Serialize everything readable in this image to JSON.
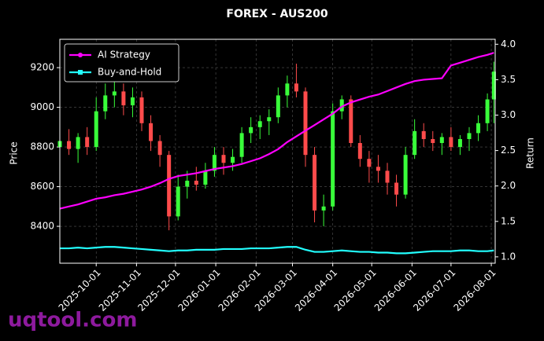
{
  "chart_data": {
    "type": "candlestick",
    "title": "FOREX - AUS200",
    "ylabel": "Price",
    "y2label": "Return",
    "watermark": "uqtool.com",
    "x": [
      "2025-09-03",
      "2025-09-10",
      "2025-09-17",
      "2025-09-24",
      "2025-10-01",
      "2025-10-08",
      "2025-10-15",
      "2025-10-22",
      "2025-10-29",
      "2025-11-05",
      "2025-11-12",
      "2025-11-19",
      "2025-11-26",
      "2025-12-03",
      "2025-12-10",
      "2025-12-17",
      "2025-12-24",
      "2025-12-31",
      "2026-01-07",
      "2026-01-14",
      "2026-01-21",
      "2026-01-28",
      "2026-02-04",
      "2026-02-11",
      "2026-02-18",
      "2026-02-25",
      "2026-03-04",
      "2026-03-11",
      "2026-03-18",
      "2026-03-25",
      "2026-04-01",
      "2026-04-08",
      "2026-04-15",
      "2026-04-22",
      "2026-04-29",
      "2026-05-06",
      "2026-05-13",
      "2026-05-20",
      "2026-05-27",
      "2026-06-03",
      "2026-06-10",
      "2026-06-17",
      "2026-06-24",
      "2026-07-01",
      "2026-07-08",
      "2026-07-15",
      "2026-07-22",
      "2026-07-29",
      "2026-08-03"
    ],
    "open": [
      8800,
      8830,
      8790,
      8850,
      8800,
      8980,
      9060,
      9080,
      9010,
      9050,
      8920,
      8830,
      8760,
      8450,
      8600,
      8630,
      8610,
      8680,
      8760,
      8720,
      8750,
      8870,
      8900,
      8930,
      8950,
      9060,
      9120,
      9080,
      8760,
      8480,
      8500,
      8980,
      9040,
      8820,
      8740,
      8700,
      8680,
      8620,
      8560,
      8760,
      8880,
      8840,
      8820,
      8850,
      8800,
      8840,
      8870,
      8920,
      9040
    ],
    "high": [
      8880,
      8890,
      8870,
      8900,
      9050,
      9120,
      9160,
      9120,
      9100,
      9080,
      8960,
      8860,
      8780,
      8660,
      8680,
      8700,
      8720,
      8800,
      8800,
      8790,
      8900,
      8950,
      8960,
      8990,
      9100,
      9160,
      9220,
      9100,
      8800,
      8560,
      9020,
      9060,
      9060,
      8860,
      8780,
      8760,
      8720,
      8660,
      8800,
      8940,
      8920,
      8880,
      8870,
      8900,
      8860,
      8900,
      8960,
      9070,
      9230
    ],
    "low": [
      8740,
      8760,
      8720,
      8760,
      8780,
      8940,
      9000,
      8960,
      8950,
      8880,
      8780,
      8700,
      8380,
      8430,
      8540,
      8580,
      8590,
      8650,
      8660,
      8680,
      8720,
      8820,
      8840,
      8860,
      8920,
      9000,
      9050,
      8700,
      8420,
      8400,
      8480,
      8940,
      8800,
      8700,
      8620,
      8620,
      8560,
      8500,
      8540,
      8740,
      8800,
      8780,
      8760,
      8780,
      8760,
      8780,
      8830,
      8880,
      8920
    ],
    "close": [
      8830,
      8790,
      8850,
      8800,
      8980,
      9060,
      9080,
      9010,
      9050,
      8920,
      8830,
      8760,
      8450,
      8600,
      8630,
      8610,
      8680,
      8760,
      8720,
      8750,
      8870,
      8900,
      8930,
      8950,
      9060,
      9120,
      9080,
      8760,
      8480,
      8500,
      8980,
      9040,
      8820,
      8740,
      8700,
      8680,
      8620,
      8560,
      8760,
      8880,
      8840,
      8820,
      8850,
      8800,
      8840,
      8870,
      8920,
      9040,
      9180
    ],
    "up_color": "#39ff3a",
    "down_color": "#ff4b4b",
    "series": [
      {
        "name": "AI Strategy",
        "color": "#ff00ff",
        "axis": "y2",
        "values": [
          1.68,
          1.71,
          1.74,
          1.78,
          1.82,
          1.84,
          1.87,
          1.89,
          1.92,
          1.95,
          1.99,
          2.04,
          2.1,
          2.14,
          2.16,
          2.18,
          2.21,
          2.24,
          2.26,
          2.28,
          2.31,
          2.35,
          2.39,
          2.45,
          2.52,
          2.62,
          2.7,
          2.78,
          2.86,
          2.94,
          3.02,
          3.12,
          3.18,
          3.22,
          3.26,
          3.29,
          3.34,
          3.39,
          3.44,
          3.48,
          3.5,
          3.51,
          3.52,
          3.7,
          3.74,
          3.78,
          3.82,
          3.85,
          3.88
        ]
      },
      {
        "name": "Buy-and-Hold",
        "color": "#22ffff",
        "axis": "y2",
        "values": [
          1.12,
          1.12,
          1.13,
          1.12,
          1.13,
          1.14,
          1.14,
          1.13,
          1.12,
          1.11,
          1.1,
          1.09,
          1.08,
          1.09,
          1.09,
          1.1,
          1.1,
          1.1,
          1.11,
          1.11,
          1.11,
          1.12,
          1.12,
          1.12,
          1.13,
          1.14,
          1.14,
          1.1,
          1.07,
          1.07,
          1.08,
          1.09,
          1.08,
          1.07,
          1.07,
          1.06,
          1.06,
          1.05,
          1.05,
          1.06,
          1.07,
          1.08,
          1.08,
          1.08,
          1.09,
          1.09,
          1.08,
          1.08,
          1.09
        ]
      }
    ],
    "xlim": [
      "2025-09-03",
      "2026-08-04"
    ],
    "xticks": [
      "2025-10-01",
      "2025-11-01",
      "2025-12-01",
      "2026-01-01",
      "2026-02-01",
      "2026-03-01",
      "2026-04-01",
      "2026-05-01",
      "2026-06-01",
      "2026-07-01",
      "2026-08-01"
    ],
    "ylim": [
      8214,
      9343
    ],
    "yticks": [
      8400,
      8600,
      8800,
      9000,
      9200
    ],
    "y2lim": [
      0.91,
      4.07
    ],
    "y2ticks": [
      {
        "value": 1,
        "label": "1.0"
      },
      1.5,
      {
        "value": 2,
        "label": "2.0"
      },
      2.5,
      {
        "value": 3,
        "label": "3.0"
      },
      3.5,
      {
        "value": 4,
        "label": "4.0"
      }
    ],
    "grid": true,
    "legend": "upper left"
  }
}
